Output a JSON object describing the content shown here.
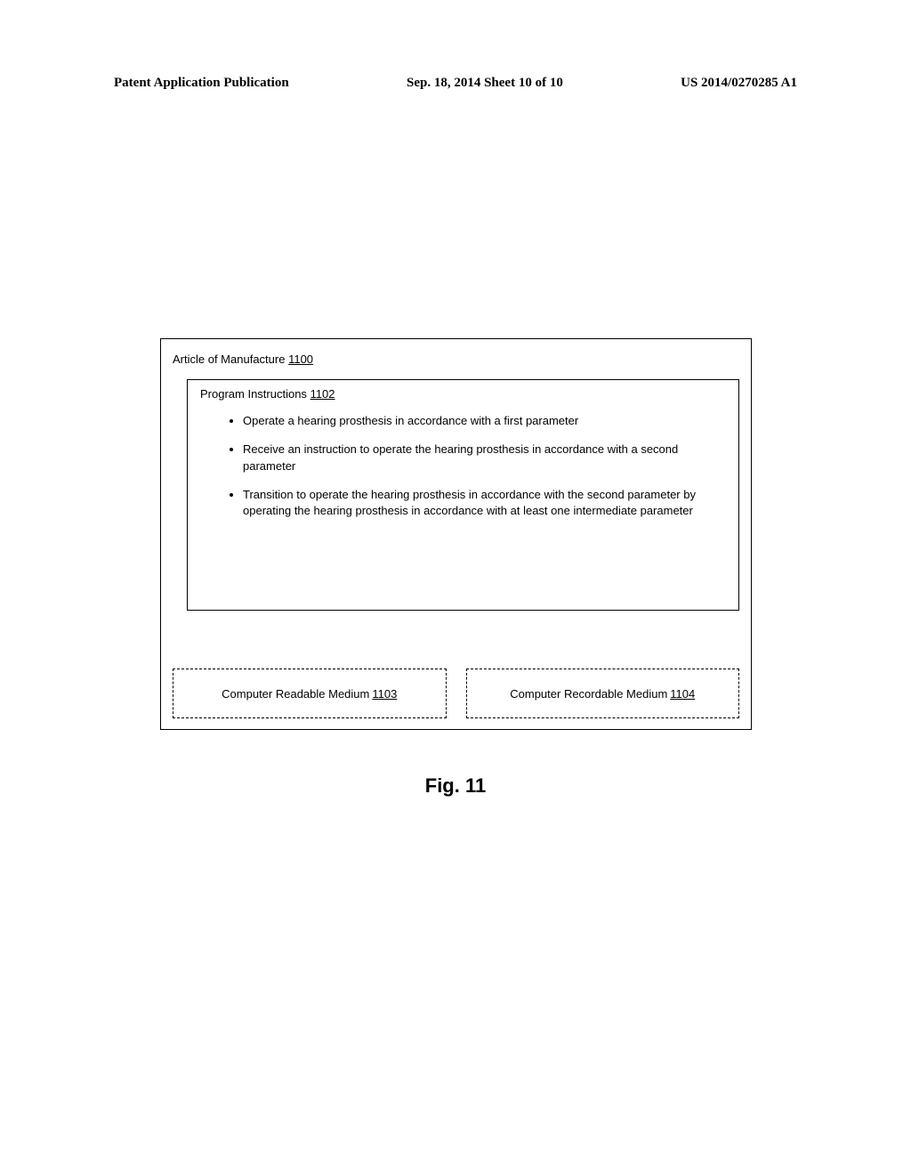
{
  "header": {
    "left": "Patent Application Publication",
    "center": "Sep. 18, 2014  Sheet 10 of 10",
    "right": "US 2014/0270285 A1"
  },
  "article": {
    "label": "Article of Manufacture",
    "ref": "1100"
  },
  "instructions": {
    "label": "Program Instructions",
    "ref": "1102",
    "bullets": [
      "Operate a hearing prosthesis in accordance with a first parameter",
      "Receive an instruction to operate the hearing prosthesis in accordance with a second parameter",
      "Transition to operate the hearing prosthesis in accordance with the second parameter by operating the hearing prosthesis in accordance with at least one intermediate parameter"
    ]
  },
  "media": {
    "readable": {
      "label": "Computer Readable Medium",
      "ref": "1103"
    },
    "recordable": {
      "label": "Computer Recordable Medium",
      "ref": "1104"
    }
  },
  "figure": {
    "label": "Fig. 11"
  }
}
